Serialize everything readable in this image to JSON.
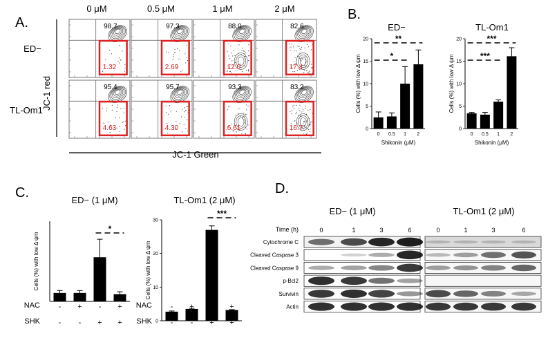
{
  "panel_labels": [
    "A.",
    "B.",
    "C.",
    "D."
  ],
  "panelA": {
    "conc_labels": [
      "0 μM",
      "0.5 μM",
      "1 μM",
      "2 μM"
    ],
    "row_labels": [
      "ED−",
      "TL-Om1"
    ],
    "y_axis_label": "JC-1 red",
    "x_axis_label": "JC-1 Green",
    "upper_values": [
      [
        "98.7",
        "97.3",
        "88.0",
        "82.6"
      ],
      [
        "95.4",
        "95.7",
        "93.3",
        "83.2"
      ]
    ],
    "lower_values": [
      [
        "1.32",
        "2.69",
        "12.0",
        "17.4"
      ],
      [
        "4.63",
        "4.30",
        "6.61",
        "16.7"
      ]
    ],
    "highlight_color": "#e02020"
  },
  "chart_data": [
    {
      "id": "B-ED",
      "type": "bar",
      "title": "ED−",
      "xlabel": "Shikonin (μM)",
      "ylabel": "Cells (%) with low Δ ψm",
      "categories": [
        "0",
        "0.5",
        "1",
        "2"
      ],
      "values": [
        2.5,
        2.7,
        10.0,
        14.3
      ],
      "errors": [
        1.2,
        0.8,
        3.8,
        3.2
      ],
      "ylim": [
        0,
        20
      ],
      "yticks": [
        "0",
        "5",
        "10",
        "15",
        "20"
      ],
      "significance": [
        {
          "label": "**",
          "from": "0",
          "to": "2"
        },
        {
          "label": "*",
          "from": "0",
          "to": "1"
        }
      ]
    },
    {
      "id": "B-TL",
      "type": "bar",
      "title": "TL-Om1",
      "xlabel": "Shikonin (μM)",
      "ylabel": "Cells (%) with low Δ ψm",
      "categories": [
        "0",
        "0.5",
        "1",
        "2"
      ],
      "values": [
        3.4,
        3.1,
        6.0,
        16.1
      ],
      "errors": [
        0.2,
        0.5,
        0.4,
        1.9
      ],
      "ylim": [
        0,
        20
      ],
      "yticks": [
        "0",
        "5",
        "10",
        "15",
        "20"
      ],
      "significance": [
        {
          "label": "***",
          "from": "0",
          "to": "2"
        },
        {
          "label": "***",
          "from": "0",
          "to": "1"
        }
      ]
    },
    {
      "id": "C-ED",
      "type": "bar",
      "title": "ED− (1 μM)",
      "ylabel": "Cells (%) with low Δ ψm",
      "categories": [
        "-/-",
        "+/-",
        "-/+",
        "+/+"
      ],
      "values": [
        2.1,
        2.1,
        11.0,
        1.8
      ],
      "errors": [
        0.6,
        0.6,
        4.5,
        0.6
      ],
      "ylim": [
        0,
        20
      ],
      "yticks": [],
      "significance": [
        {
          "label": "*",
          "from": "-/+",
          "to": "+/+"
        }
      ]
    },
    {
      "id": "C-TL",
      "type": "bar",
      "title": "TL-Om1 (2 μM)",
      "ylabel": "Cells (%) with low Δ ψm",
      "categories": [
        "-/-",
        "+/-",
        "-/+",
        "+/+"
      ],
      "values": [
        2.7,
        3.5,
        27.0,
        3.2
      ],
      "errors": [
        0.2,
        0.2,
        1.2,
        0.1
      ],
      "ylim": [
        0,
        30
      ],
      "yticks": [
        "0",
        "10",
        "20",
        "30"
      ],
      "significance": [
        {
          "label": "***",
          "from": "-/+",
          "to": "+/+"
        }
      ]
    }
  ],
  "panelC": {
    "nac_label": "NAC",
    "shk_label": "SHK",
    "nac_signs": [
      "-",
      "+",
      "-",
      "+"
    ],
    "shk_signs": [
      "-",
      "-",
      "+",
      "+"
    ]
  },
  "panelD": {
    "left_title": "ED− (1 μM)",
    "right_title": "TL-Om1 (2 μM)",
    "time_label": "Time (h)",
    "timepoints": [
      "0",
      "1",
      "3",
      "6"
    ],
    "proteins": [
      "Cytochrome C",
      "Cleaved Caspase 3",
      "Cleaved Caspase 9",
      "p-Bcl2",
      "Survivin",
      "Actin"
    ],
    "intensity_left": [
      [
        0.55,
        0.75,
        0.95,
        1.0
      ],
      [
        0.0,
        0.05,
        0.25,
        0.95
      ],
      [
        0.25,
        0.3,
        0.45,
        0.85
      ],
      [
        0.9,
        0.85,
        0.55,
        0.3
      ],
      [
        0.85,
        0.9,
        0.8,
        0.35
      ],
      [
        0.9,
        0.9,
        0.9,
        0.9
      ]
    ],
    "intensity_right": [
      [
        0.05,
        0.05,
        0.05,
        0.05
      ],
      [
        0.15,
        0.3,
        0.55,
        0.7
      ],
      [
        0.3,
        0.35,
        0.45,
        0.6
      ],
      [
        0.0,
        0.0,
        0.0,
        0.0
      ],
      [
        0.75,
        0.6,
        0.45,
        0.25
      ],
      [
        0.85,
        0.85,
        0.85,
        0.85
      ]
    ]
  }
}
